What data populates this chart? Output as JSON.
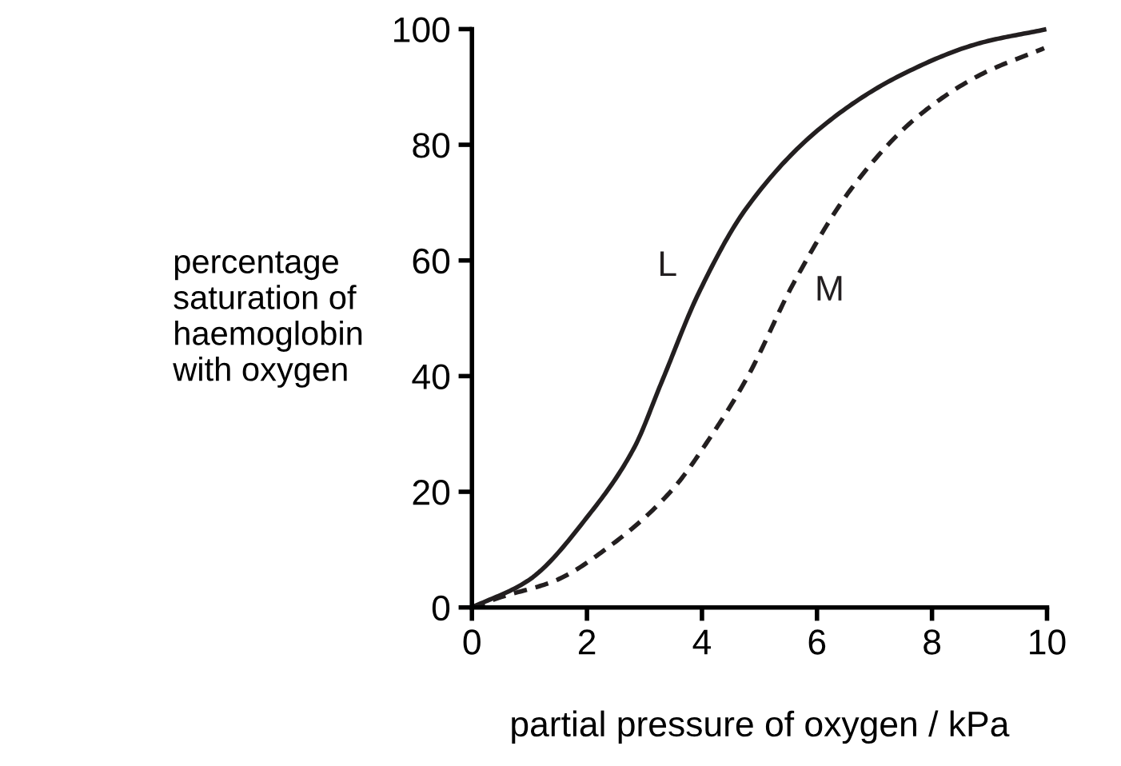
{
  "chart_data": {
    "type": "line",
    "xlabel": "partial pressure of oxygen / kPa",
    "ylabel": "percentage\nsaturation of\nhaemoglobin\nwith oxygen",
    "xlim": [
      0,
      10
    ],
    "ylim": [
      0,
      100
    ],
    "xticks": [
      0,
      2,
      4,
      6,
      8,
      10
    ],
    "yticks": [
      0,
      20,
      40,
      60,
      80,
      100
    ],
    "grid": false,
    "legend": false,
    "marker": "none",
    "series": [
      {
        "name": "L",
        "color": "#231f20",
        "line_style": "solid",
        "x": [
          0,
          0.97,
          2.08,
          2.82,
          3.3,
          3.94,
          4.77,
          6.06,
          7.45,
          8.84,
          9.95
        ],
        "values": [
          0,
          4.6,
          16.6,
          27.6,
          39,
          54.3,
          69,
          82.9,
          92,
          97.6,
          99.9
        ]
      },
      {
        "name": "M",
        "color": "#231f20",
        "line_style": "dashed",
        "x": [
          0,
          0.51,
          1.44,
          2.45,
          3.47,
          4.21,
          4.8,
          5.6,
          6.62,
          7.73,
          8.84,
          9.95
        ],
        "values": [
          0,
          1.8,
          4.6,
          11,
          20.2,
          30.4,
          40,
          56.2,
          72.7,
          84.7,
          92.1,
          96.7
        ]
      }
    ]
  }
}
